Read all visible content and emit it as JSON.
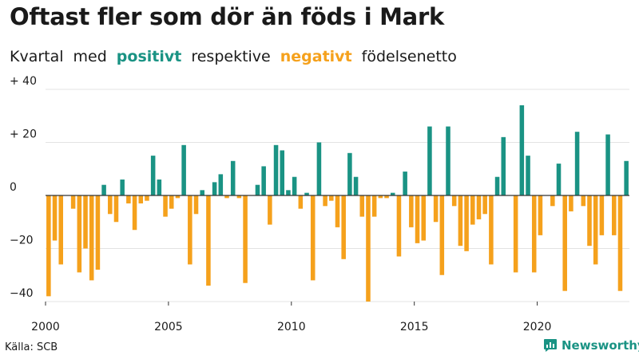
{
  "header": {
    "title": "Oftast fler som dör än föds i Mark",
    "subtitle": {
      "part1": "Kvartal",
      "part2": "med",
      "positive_word": "positivt",
      "part3": "respektive",
      "negative_word": "negativt",
      "part4": "födelsenetto"
    }
  },
  "footer": {
    "source": "Källa: SCB",
    "logo_text": "Newsworthy"
  },
  "colors": {
    "positive": "#1a9384",
    "negative": "#f5a11c",
    "grid": "#e3e3e3",
    "zero_line": "#333333"
  },
  "chart_data": {
    "type": "bar",
    "x_start_year": 2000,
    "x_tick_labels": [
      "2000",
      "2005",
      "2010",
      "2015",
      "2020"
    ],
    "y_tick_labels": [
      "+ 40",
      "+ 20",
      "0",
      "−20",
      "−40"
    ],
    "y_ticks": [
      40,
      20,
      0,
      -20,
      -40
    ],
    "ylim": [
      -40,
      40
    ],
    "grid": true,
    "values": [
      -38,
      -17,
      -26,
      0,
      -5,
      -29,
      -20,
      -32,
      -28,
      4,
      -7,
      -10,
      6,
      -3,
      -13,
      -3,
      -2,
      15,
      6,
      -8,
      -5,
      -1,
      19,
      -26,
      -7,
      2,
      -34,
      5,
      8,
      -1,
      13,
      -1,
      -33,
      0,
      4,
      11,
      -11,
      19,
      17,
      2,
      7,
      -5,
      1,
      -32,
      20,
      -4,
      -2,
      -12,
      -24,
      16,
      7,
      -8,
      -40,
      -8,
      -1,
      -1,
      1,
      -23,
      9,
      -12,
      -18,
      -17,
      26,
      -10,
      -30,
      26,
      -4,
      -19,
      -21,
      -11,
      -9,
      -7,
      -26,
      7,
      22,
      0,
      -29,
      34,
      15,
      -29,
      -15,
      0,
      -4,
      12,
      -36,
      -6,
      24,
      -4,
      -19,
      -26,
      -15,
      23,
      -15,
      -36,
      13
    ]
  }
}
